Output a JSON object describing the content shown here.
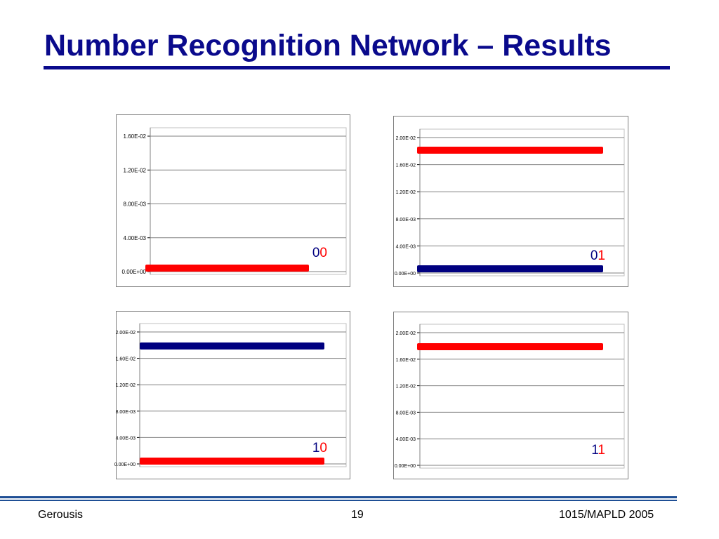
{
  "slide": {
    "title": "Number Recognition Network – Results",
    "footer_left": "Gerousis",
    "footer_center": "19",
    "footer_right": "1015/MAPLD 2005"
  },
  "colors": {
    "title": "#0a0a8c",
    "rule": "#0a0a8c",
    "footer_rule": "#1f4f95",
    "red_series": "#ff0000",
    "blue_series": "#000080",
    "gridline": "#808080"
  },
  "chart_data": [
    {
      "type": "bar",
      "orientation": "horizontal",
      "yticks": [
        "0.00E+00",
        "4.00E-03",
        "8.00E-03",
        "1.20E-02",
        "1.60E-02"
      ],
      "ylim": [
        0,
        0.016
      ],
      "grid": true,
      "series": [
        {
          "color": "#ff0000",
          "value": 0.0
        }
      ],
      "annotation": [
        {
          "text": "0",
          "color": "#000080"
        },
        {
          "text": "0",
          "color": "#ff0000"
        }
      ]
    },
    {
      "type": "bar",
      "orientation": "horizontal",
      "yticks": [
        "0.00E+00",
        "4.00E-03",
        "8.00E-03",
        "1.20E-02",
        "1.60E-02",
        "2.00E-02"
      ],
      "ylim": [
        0,
        0.02
      ],
      "grid": true,
      "series": [
        {
          "color": "#ff0000",
          "value": 0.0176
        },
        {
          "color": "#000080",
          "value": 0.0
        }
      ],
      "annotation": [
        {
          "text": "0",
          "color": "#000080"
        },
        {
          "text": "1",
          "color": "#ff0000"
        }
      ]
    },
    {
      "type": "bar",
      "orientation": "horizontal",
      "yticks": [
        "0.00E+00",
        "4.00E-03",
        "8.00E-03",
        "1.20E-02",
        "1.60E-02",
        "2.00E-02"
      ],
      "ylim": [
        0,
        0.02
      ],
      "grid": true,
      "series": [
        {
          "color": "#000080",
          "value": 0.0168
        },
        {
          "color": "#ff0000",
          "value": 0.0
        }
      ],
      "annotation": [
        {
          "text": "1",
          "color": "#000080"
        },
        {
          "text": "0",
          "color": "#ff0000"
        }
      ]
    },
    {
      "type": "bar",
      "orientation": "horizontal",
      "yticks": [
        "0.00E+00",
        "4.00E-03",
        "8.00E-03",
        "1.20E-02",
        "1.60E-02",
        "2.00E-02"
      ],
      "ylim": [
        0,
        0.02
      ],
      "grid": true,
      "series": [
        {
          "color": "#ff0000",
          "value": 0.0168
        }
      ],
      "annotation": [
        {
          "text": "1",
          "color": "#000080"
        },
        {
          "text": "1",
          "color": "#ff0000"
        }
      ]
    }
  ]
}
